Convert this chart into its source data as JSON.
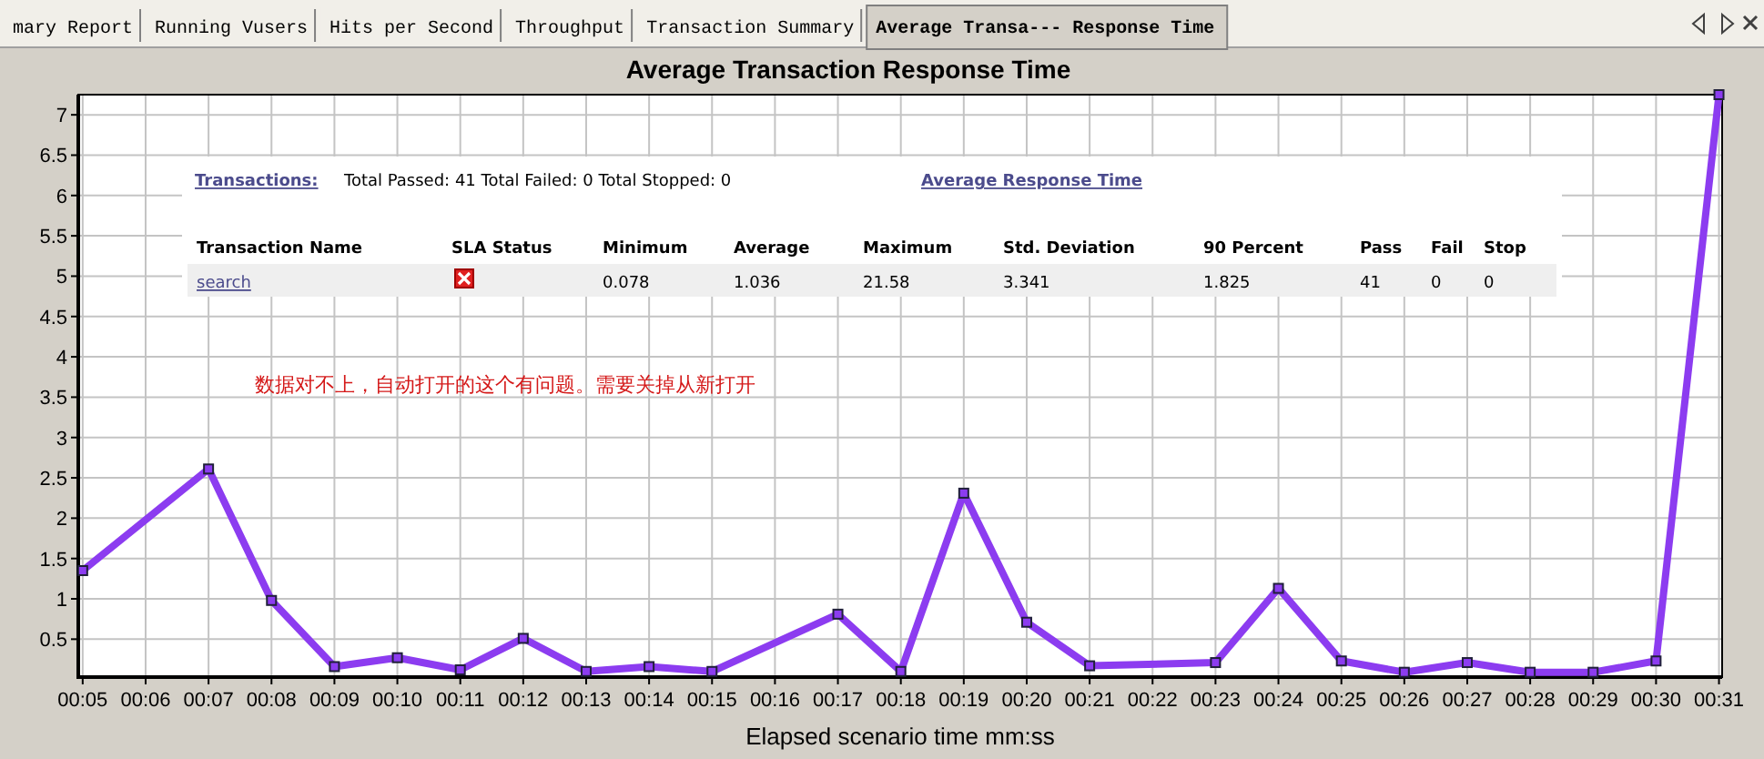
{
  "chart_data": {
    "type": "line",
    "title": "Average Transaction Response Time",
    "xlabel": "Elapsed scenario time mm:ss",
    "x": [
      5,
      7,
      8,
      9,
      10,
      11,
      12,
      13,
      14,
      15,
      17,
      18,
      19,
      20,
      21,
      23,
      24,
      25,
      26,
      27,
      28,
      29,
      30,
      31
    ],
    "series": [
      {
        "color": "#8c3cf0",
        "values": [
          1.35,
          2.61,
          0.98,
          0.16,
          0.27,
          0.12,
          0.51,
          0.1,
          0.16,
          0.1,
          0.81,
          0.1,
          2.31,
          0.71,
          0.17,
          0.21,
          1.13,
          0.23,
          0.09,
          0.21,
          0.09,
          0.09,
          0.23,
          7.25
        ]
      }
    ],
    "xlim": [
      4.93,
      31.05
    ],
    "xticks": [
      {
        "value": 5,
        "label": "00:05"
      },
      {
        "value": 6,
        "label": "00:06"
      },
      {
        "value": 7,
        "label": "00:07"
      },
      {
        "value": 8,
        "label": "00:08"
      },
      {
        "value": 9,
        "label": "00:09"
      },
      {
        "value": 10,
        "label": "00:10"
      },
      {
        "value": 11,
        "label": "00:11"
      },
      {
        "value": 12,
        "label": "00:12"
      },
      {
        "value": 13,
        "label": "00:13"
      },
      {
        "value": 14,
        "label": "00:14"
      },
      {
        "value": 15,
        "label": "00:15"
      },
      {
        "value": 16,
        "label": "00:16"
      },
      {
        "value": 17,
        "label": "00:17"
      },
      {
        "value": 18,
        "label": "00:18"
      },
      {
        "value": 19,
        "label": "00:19"
      },
      {
        "value": 20,
        "label": "00:20"
      },
      {
        "value": 21,
        "label": "00:21"
      },
      {
        "value": 22,
        "label": "00:22"
      },
      {
        "value": 23,
        "label": "00:23"
      },
      {
        "value": 24,
        "label": "00:24"
      },
      {
        "value": 25,
        "label": "00:25"
      },
      {
        "value": 26,
        "label": "00:26"
      },
      {
        "value": 27,
        "label": "00:27"
      },
      {
        "value": 28,
        "label": "00:28"
      },
      {
        "value": 29,
        "label": "00:29"
      },
      {
        "value": 30,
        "label": "00:30"
      },
      {
        "value": 31,
        "label": "00:31"
      }
    ],
    "ylim": [
      0.03,
      7.25
    ],
    "yticks": [
      0.5,
      1,
      1.5,
      2,
      2.5,
      3,
      3.5,
      4,
      4.5,
      5,
      5.5,
      6,
      6.5,
      7
    ],
    "grid": true,
    "marker": "square",
    "line_style": "solid",
    "annotations": [
      "mary Report",
      "Running Vusers",
      "Hits per Second",
      "Throughput",
      "Transaction Summary",
      "Average Transa--- Response Time",
      "Transactions:",
      "Total Passed: 41 Total Failed: 0 Total Stopped: 0",
      "Average Response Time",
      "Transaction Name",
      "SLA Status",
      "Minimum",
      "Average",
      "Maximum",
      "Std. Deviation",
      "90 Percent",
      "Pass",
      "Fail",
      "Stop",
      "search",
      "0.078",
      "1.036",
      "21.58",
      "3.341",
      "1.825",
      "41",
      "0",
      "0",
      "数据对不上，自动打开的这个有问题。需要关掉从新打开"
    ]
  }
}
